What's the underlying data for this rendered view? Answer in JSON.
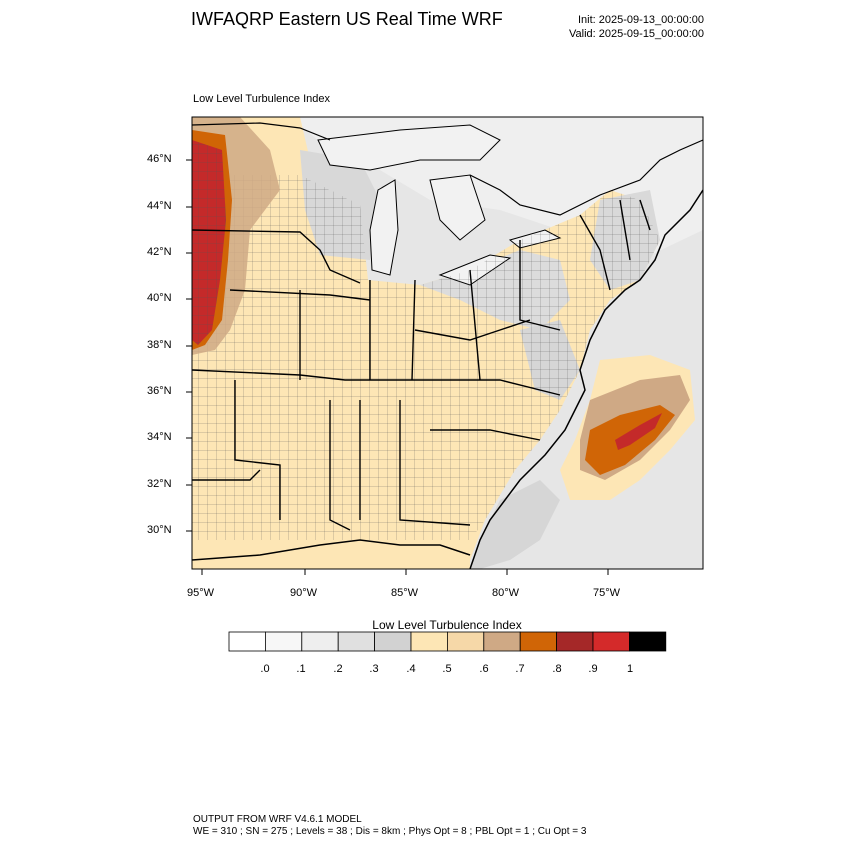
{
  "title": "IWFAQRP Eastern US Real Time WRF",
  "init_label": "Init: 2025-09-13_00:00:00",
  "valid_label": "Valid: 2025-09-15_00:00:00",
  "map_subtitle": "Low Level Turbulence Index",
  "lat_labels": [
    "46°N",
    "44°N",
    "42°N",
    "40°N",
    "38°N",
    "36°N",
    "34°N",
    "32°N",
    "30°N"
  ],
  "lon_labels": [
    "95°W",
    "90°W",
    "85°W",
    "80°W",
    "75°W"
  ],
  "colorbar": {
    "title": "Low Level Turbulence Index",
    "tick_labels": [
      ".0",
      ".1",
      ".2",
      ".3",
      ".4",
      ".5",
      ".6",
      ".7",
      ".8",
      ".9",
      "1"
    ],
    "colors": [
      "#ffffff",
      "#f7f7f7",
      "#eeeeee",
      "#e0e0e0",
      "#d2d2d2",
      "#fde6b5",
      "#f6d8a8",
      "#cfa985",
      "#d06506",
      "#a52828",
      "#d42a2a",
      "#000000"
    ]
  },
  "footer": {
    "line1": "OUTPUT FROM WRF V4.6.1 MODEL",
    "line2": "WE = 310 ; SN = 275 ; Levels = 38 ; Dis = 8km ; Phys Opt = 8 ; PBL Opt = 1 ; Cu Opt = 3"
  }
}
